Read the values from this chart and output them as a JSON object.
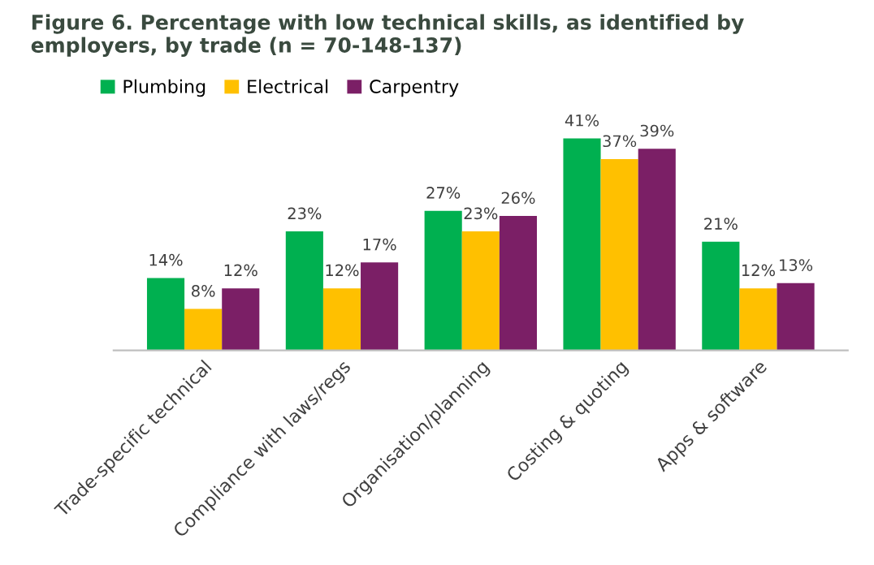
{
  "chart_data": {
    "type": "bar",
    "title": "Figure 6. Percentage with low technical skills, as identified by employers, by trade (n = 70-148-137)",
    "categories": [
      "Trade-specific technical",
      "Compliance with laws/regs",
      "Organisation/planning",
      "Costing & quoting",
      "Apps & software"
    ],
    "series": [
      {
        "name": "Plumbing",
        "color": "#00b050",
        "values": [
          14,
          23,
          27,
          41,
          21
        ],
        "value_labels": [
          "14%",
          "23%",
          "27%",
          "41%",
          "21%"
        ]
      },
      {
        "name": "Electrical",
        "color": "#ffc000",
        "values": [
          8,
          12,
          23,
          37,
          12
        ],
        "value_labels": [
          "8%",
          "12%",
          "23%",
          "37%",
          "12%"
        ]
      },
      {
        "name": "Carpentry",
        "color": "#7b1f66",
        "values": [
          12,
          17,
          26,
          39,
          13
        ],
        "value_labels": [
          "12%",
          "17%",
          "26%",
          "39%",
          "13%"
        ]
      }
    ],
    "legend": "top left",
    "grid": false
  }
}
